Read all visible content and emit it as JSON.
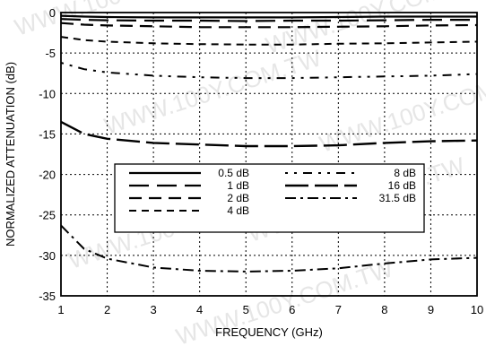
{
  "watermark": "WWW.100Y.COM.TW",
  "chart_data": {
    "type": "line",
    "title": "",
    "xlabel": "FREQUENCY (GHz)",
    "ylabel": "NORMALIZED ATTENUATION (dB)",
    "xlim": [
      1,
      10
    ],
    "ylim": [
      -35,
      0
    ],
    "x_ticks": [
      "1",
      "2",
      "3",
      "4",
      "5",
      "6",
      "7",
      "8",
      "9",
      "10"
    ],
    "y_ticks": [
      "0",
      "-5",
      "-10",
      "-15",
      "-20",
      "-25",
      "-30",
      "-35"
    ],
    "grid": true,
    "legend_position": "center-left",
    "x": [
      1,
      1.5,
      2,
      3,
      4,
      5,
      6,
      7,
      8,
      9,
      10
    ],
    "series": [
      {
        "name": "0.5 dB",
        "style": "solid",
        "values": [
          -0.4,
          -0.5,
          -0.55,
          -0.6,
          -0.6,
          -0.6,
          -0.6,
          -0.55,
          -0.5,
          -0.5,
          -0.5
        ]
      },
      {
        "name": "1 dB",
        "style": "long-dash",
        "values": [
          -0.8,
          -0.9,
          -0.95,
          -1.0,
          -1.0,
          -1.05,
          -1.0,
          -1.0,
          -0.95,
          -0.9,
          -0.9
        ]
      },
      {
        "name": "2 dB",
        "style": "dash",
        "values": [
          -1.3,
          -1.5,
          -1.6,
          -1.7,
          -1.8,
          -1.8,
          -1.8,
          -1.75,
          -1.7,
          -1.6,
          -1.55
        ]
      },
      {
        "name": "4 dB",
        "style": "short-dash",
        "values": [
          -3.0,
          -3.4,
          -3.6,
          -3.8,
          -3.9,
          -3.95,
          -3.95,
          -3.85,
          -3.8,
          -3.7,
          -3.6
        ]
      },
      {
        "name": "8 dB",
        "style": "dot-dash-sparse",
        "values": [
          -6.2,
          -7.0,
          -7.4,
          -7.8,
          -8.0,
          -8.1,
          -8.1,
          -8.0,
          -7.9,
          -7.8,
          -7.6
        ]
      },
      {
        "name": "16 dB",
        "style": "long-dash-heavy",
        "values": [
          -13.5,
          -15.0,
          -15.6,
          -16.1,
          -16.3,
          -16.5,
          -16.5,
          -16.4,
          -16.1,
          -15.9,
          -15.8
        ]
      },
      {
        "name": "31.5 dB",
        "style": "dash-dot",
        "values": [
          -26.3,
          -29.2,
          -30.4,
          -31.5,
          -31.9,
          -32.0,
          -31.9,
          -31.6,
          -31.0,
          -30.5,
          -30.3
        ]
      }
    ]
  }
}
